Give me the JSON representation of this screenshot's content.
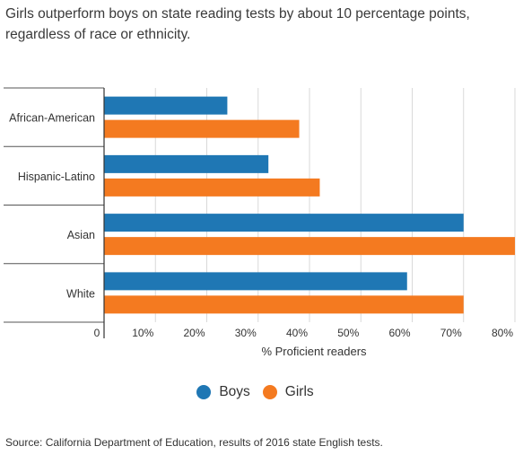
{
  "chart_data": {
    "type": "bar",
    "orientation": "horizontal",
    "title": "Girls outperform boys on state reading tests by about 10 percentage points, regardless of race or ethnicity.",
    "categories": [
      "African-American",
      "Hispanic-Latino",
      "Asian",
      "White"
    ],
    "series": [
      {
        "name": "Boys",
        "color": "#1f77b4",
        "values": [
          24,
          32,
          70,
          59
        ]
      },
      {
        "name": "Girls",
        "color": "#f47a20",
        "values": [
          38,
          42,
          80,
          70
        ]
      }
    ],
    "xlabel": "% Proficient readers",
    "ylabel": "",
    "xlim": [
      0,
      80
    ],
    "xticks": [
      0,
      10,
      20,
      30,
      40,
      50,
      60,
      70,
      80
    ],
    "xtick_labels": [
      "0",
      "10%",
      "20%",
      "30%",
      "40%",
      "50%",
      "60%",
      "70%",
      "80%"
    ],
    "grid": true,
    "legend_position": "bottom"
  },
  "source": "Source: California Department of Education, results of 2016 state English tests."
}
